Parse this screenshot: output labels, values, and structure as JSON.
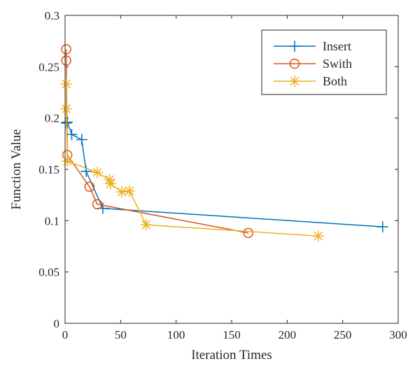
{
  "chart_data": {
    "type": "line",
    "title": "",
    "xlabel": "Iteration Times",
    "ylabel": "Function Value",
    "xlim": [
      0,
      300
    ],
    "ylim": [
      0,
      0.3
    ],
    "xticks": [
      0,
      50,
      100,
      150,
      200,
      250,
      300
    ],
    "xtick_labels": [
      "0",
      "50",
      "100",
      "150",
      "200",
      "250",
      "300"
    ],
    "yticks": [
      0,
      0.05,
      0.1,
      0.15,
      0.2,
      0.25,
      0.3
    ],
    "ytick_labels": [
      "0",
      "0.05",
      "0.1",
      "0.15",
      "0.2",
      "0.25",
      "0.3"
    ],
    "grid": false,
    "legend_position": "top-right",
    "series": [
      {
        "name": "Insert",
        "color": "#0072BD",
        "marker": "plus",
        "x": [
          1,
          2,
          6,
          15,
          19,
          34,
          286
        ],
        "y": [
          0.195,
          0.196,
          0.184,
          0.179,
          0.148,
          0.112,
          0.094
        ]
      },
      {
        "name": "Swith",
        "color": "#D95319",
        "marker": "circle",
        "x": [
          1,
          1,
          2,
          22,
          29,
          165
        ],
        "y": [
          0.267,
          0.256,
          0.164,
          0.133,
          0.116,
          0.088
        ]
      },
      {
        "name": "Both",
        "color": "#EDB120",
        "marker": "asterisk",
        "x": [
          1,
          1,
          2,
          29,
          40,
          41,
          51,
          58,
          73,
          228
        ],
        "y": [
          0.233,
          0.209,
          0.158,
          0.147,
          0.14,
          0.136,
          0.128,
          0.129,
          0.096,
          0.085
        ]
      }
    ]
  }
}
